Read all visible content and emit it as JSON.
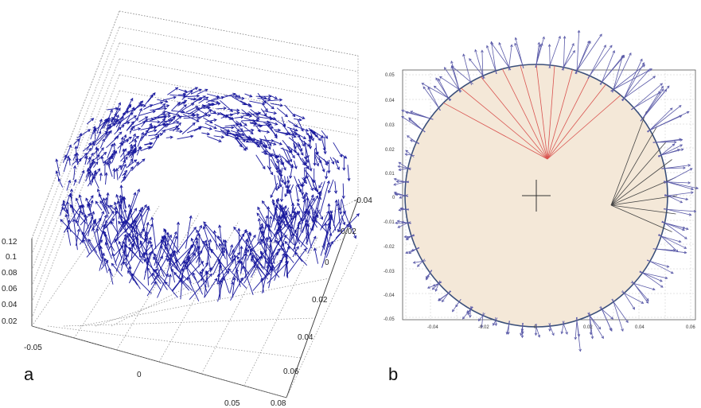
{
  "figure": {
    "panel_a": {
      "label": "a",
      "z_ticks": [
        "0.12",
        "0.1",
        "0.08",
        "0.06",
        "0.04",
        "0.02"
      ],
      "x_ticks": [
        "-0.05",
        "0",
        "0.05"
      ],
      "y_ticks": [
        "-0.04",
        "-0.02",
        "0",
        "0.02",
        "0.04",
        "0.06",
        "0.08"
      ],
      "arrow_color": "#1a1a9e"
    },
    "panel_b": {
      "label": "b",
      "y_ticks": [
        "0.05",
        "0.04",
        "0.03",
        "0.02",
        "0.01",
        "0",
        "-0.01",
        "-0.02",
        "-0.03",
        "-0.04",
        "-0.05"
      ],
      "x_ticks": [
        "-0.04",
        "-0.02",
        "0",
        "0.02",
        "0.04",
        "0.06"
      ],
      "disc_fill": "#f4e8d8",
      "circle_color": "#3a4f7a",
      "red_ray_color": "#d9534f",
      "gray_ray_color": "#444444",
      "arrow_color": "#5a5aa8"
    }
  }
}
